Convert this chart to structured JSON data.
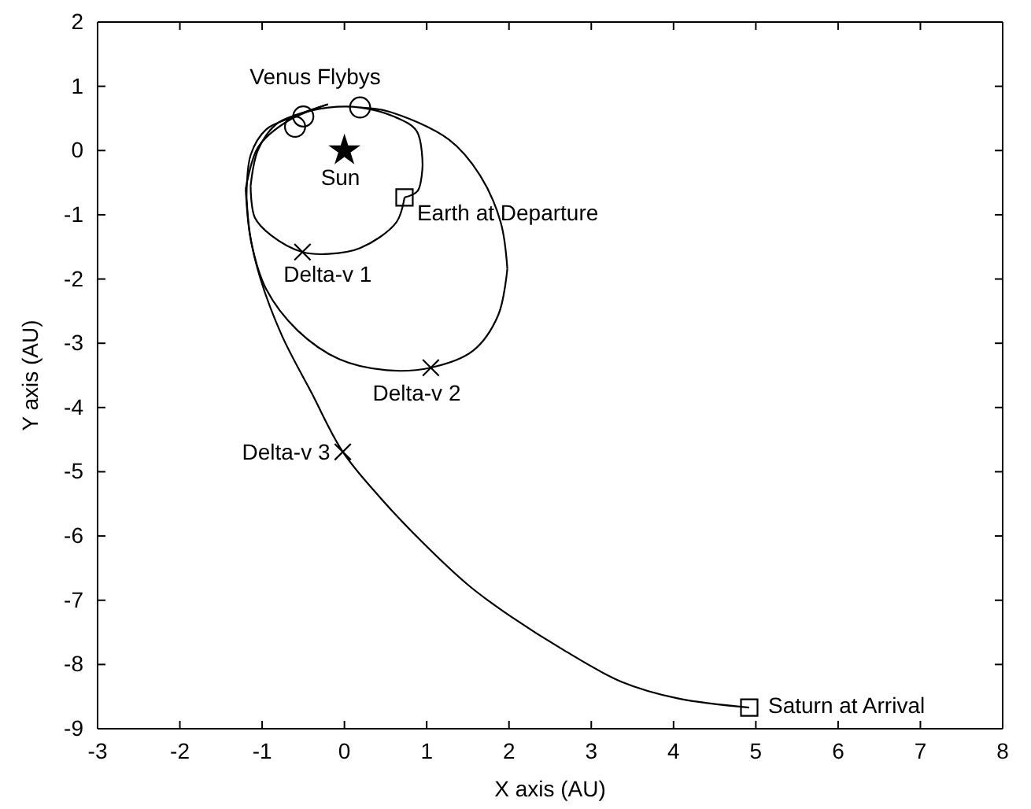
{
  "chart_data": {
    "type": "line",
    "xlabel": "X axis (AU)",
    "ylabel": "Y axis (AU)",
    "xlim": [
      -3,
      8
    ],
    "ylim": [
      -9,
      2
    ],
    "xticks": [
      -3,
      -2,
      -1,
      0,
      1,
      2,
      3,
      4,
      5,
      6,
      7,
      8
    ],
    "yticks": [
      -9,
      -8,
      -7,
      -6,
      -5,
      -4,
      -3,
      -2,
      -1,
      0,
      1,
      2
    ],
    "grid": false,
    "series": [
      {
        "type": "line",
        "color": "#000000",
        "marker": "none",
        "x": [
          0.73,
          0.63,
          0.19,
          -0.19,
          -0.51,
          -0.89,
          -1.09,
          -1.14
        ],
        "values": [
          -0.73,
          -1.12,
          -1.52,
          -1.61,
          -1.58,
          -1.32,
          -1.04,
          -0.55
        ]
      },
      {
        "type": "line",
        "color": "#000000",
        "marker": "none",
        "x": [
          -1.14,
          -1.05,
          -0.83,
          -0.6,
          -0.19,
          0.19,
          0.6,
          0.88,
          0.95
        ],
        "values": [
          -0.55,
          0.01,
          0.41,
          0.55,
          0.67,
          0.67,
          0.53,
          0.3,
          -0.23
        ]
      },
      {
        "type": "line",
        "color": "#000000",
        "marker": "none",
        "x": [
          0.95,
          0.89,
          0.73
        ],
        "values": [
          -0.23,
          -0.63,
          -0.73
        ]
      },
      {
        "type": "line",
        "color": "#000000",
        "marker": "none",
        "x": [
          0.19,
          0.53,
          1.27,
          1.65,
          1.9,
          1.98
        ],
        "values": [
          0.67,
          0.61,
          0.17,
          -0.39,
          -1.12,
          -1.84
        ]
      },
      {
        "type": "line",
        "color": "#000000",
        "marker": "none",
        "x": [
          1.98,
          1.87,
          1.56,
          1.05,
          0.51,
          -0.06,
          -0.57,
          -0.95,
          -1.13,
          -1.19
        ],
        "values": [
          -1.84,
          -2.56,
          -3.12,
          -3.38,
          -3.42,
          -3.25,
          -2.8,
          -2.16,
          -1.44,
          -0.72
        ]
      },
      {
        "type": "line",
        "color": "#000000",
        "marker": "none",
        "x": [
          -1.19,
          -1.14,
          -0.95,
          -0.63,
          -0.48,
          -0.2
        ],
        "values": [
          -0.72,
          -0.07,
          0.33,
          0.52,
          0.6,
          0.72
        ]
      },
      {
        "type": "line",
        "color": "#000000",
        "marker": "none",
        "x": [
          -0.2,
          -0.7,
          -1.05,
          -1.2
        ],
        "values": [
          0.72,
          0.45,
          0.05,
          -0.6
        ]
      },
      {
        "type": "line",
        "color": "#000000",
        "marker": "none",
        "x": [
          -1.2,
          -1.15,
          -1.02,
          -0.76,
          -0.4,
          -0.02,
          0.44,
          0.95,
          1.52,
          2.03,
          2.67,
          3.37,
          4.06,
          4.92
        ],
        "values": [
          -0.6,
          -1.3,
          -2.0,
          -2.88,
          -3.77,
          -4.69,
          -5.41,
          -6.1,
          -6.78,
          -7.26,
          -7.78,
          -8.27,
          -8.53,
          -8.67
        ]
      },
      {
        "type": "scatter",
        "color": "#000000",
        "marker": "circle",
        "x": [
          -0.6,
          -0.5,
          0.19
        ],
        "values": [
          0.37,
          0.53,
          0.67
        ]
      },
      {
        "type": "scatter",
        "color": "#000000",
        "marker": "star",
        "x": [
          0
        ],
        "values": [
          0
        ]
      },
      {
        "type": "scatter",
        "color": "#000000",
        "marker": "square",
        "x": [
          0.73,
          4.92
        ],
        "values": [
          -0.73,
          -8.67
        ]
      },
      {
        "type": "scatter",
        "color": "#000000",
        "marker": "cross",
        "x": [
          -0.51,
          1.05,
          -0.02
        ],
        "values": [
          -1.58,
          -3.38,
          -4.69
        ]
      }
    ],
    "annotations": [
      {
        "text": "Venus Flybys",
        "x": -0.5,
        "y": 0.53
      },
      {
        "text": "Sun",
        "x": 0,
        "y": 0
      },
      {
        "text": "Earth at Departure",
        "x": 0.73,
        "y": -0.73
      },
      {
        "text": "Delta-v 1",
        "x": -0.51,
        "y": -1.58
      },
      {
        "text": "Delta-v 2",
        "x": 1.05,
        "y": -3.38
      },
      {
        "text": "Delta-v 3",
        "x": -0.02,
        "y": -4.69
      },
      {
        "text": "Saturn at Arrival",
        "x": 4.92,
        "y": -8.67
      }
    ]
  }
}
